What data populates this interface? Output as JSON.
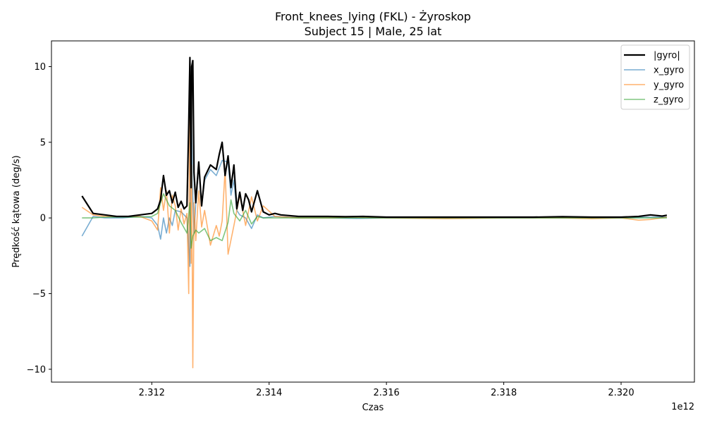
{
  "chart_data": {
    "type": "line",
    "title": "Front_knees_lying (FKL) - Żyroskop",
    "subtitle": "Subject 15 | Male, 25 lat",
    "xlabel": "Czas",
    "ylabel": "Prędkość kątowa (deg/s)",
    "x_offset_label": "1e12",
    "xlim": [
      2.31029,
      2.32125
    ],
    "ylim": [
      -10.85,
      11.7
    ],
    "x_ticks": [
      2.312,
      2.314,
      2.316,
      2.318,
      2.32
    ],
    "x_tick_labels": [
      "2.312",
      "2.314",
      "2.316",
      "2.318",
      "2.320"
    ],
    "y_ticks": [
      10,
      5,
      0,
      -5,
      -10
    ],
    "y_tick_labels": [
      "10",
      "5",
      "0",
      "−5",
      "−10"
    ],
    "grid": false,
    "legend_position": "top-right",
    "series": [
      {
        "name": "|gyro|",
        "color": "#000000",
        "x": [
          2.31081,
          2.311,
          2.3112,
          2.3114,
          2.3116,
          2.3118,
          2.312,
          2.3121,
          2.31215,
          2.3122,
          2.31225,
          2.3123,
          2.31235,
          2.3124,
          2.31245,
          2.3125,
          2.31255,
          2.3126,
          2.31263,
          2.31265,
          2.31267,
          2.31268,
          2.3127,
          2.31272,
          2.31275,
          2.3128,
          2.31285,
          2.3129,
          2.313,
          2.3131,
          2.31315,
          2.3132,
          2.31325,
          2.3133,
          2.31335,
          2.3134,
          2.31345,
          2.3135,
          2.31355,
          2.3136,
          2.31365,
          2.3137,
          2.3138,
          2.3139,
          2.314,
          2.3141,
          2.3142,
          2.3145,
          2.315,
          2.3153,
          2.3156,
          2.316,
          2.3165,
          2.317,
          2.3175,
          2.318,
          2.3185,
          2.319,
          2.3195,
          2.32,
          2.3203,
          2.3205,
          2.3207,
          2.32078
        ],
        "values": [
          1.45,
          0.3,
          0.2,
          0.1,
          0.1,
          0.2,
          0.3,
          0.6,
          1.2,
          2.8,
          1.5,
          1.8,
          1.0,
          1.7,
          0.7,
          1.1,
          0.6,
          0.8,
          6.2,
          10.6,
          2.0,
          10.0,
          10.4,
          3.0,
          1.0,
          3.7,
          0.8,
          2.7,
          3.5,
          3.2,
          4.2,
          5.0,
          2.8,
          4.1,
          2.0,
          3.5,
          0.6,
          1.7,
          0.5,
          1.6,
          1.2,
          0.4,
          1.8,
          0.4,
          0.2,
          0.3,
          0.2,
          0.1,
          0.1,
          0.08,
          0.1,
          0.05,
          0.05,
          0.05,
          0.05,
          0.05,
          0.05,
          0.08,
          0.05,
          0.05,
          0.1,
          0.2,
          0.12,
          0.18
        ]
      },
      {
        "name": "x_gyro",
        "color": "#1f77b4",
        "x": [
          2.31081,
          2.311,
          2.3112,
          2.3115,
          2.3118,
          2.312,
          2.3121,
          2.31215,
          2.3122,
          2.31225,
          2.3123,
          2.31235,
          2.3124,
          2.3125,
          2.3126,
          2.31265,
          2.31267,
          2.3127,
          2.31272,
          2.31275,
          2.3128,
          2.31285,
          2.3129,
          2.313,
          2.3131,
          2.3132,
          2.3133,
          2.31335,
          2.3134,
          2.31345,
          2.3135,
          2.3136,
          2.3137,
          2.3138,
          2.3139,
          2.3141,
          2.3145,
          2.315,
          2.3155,
          2.316,
          2.317,
          2.318,
          2.319,
          2.32,
          2.3205,
          2.32078
        ],
        "values": [
          -1.2,
          0.1,
          0.0,
          0.0,
          0.1,
          0.0,
          -0.5,
          -1.4,
          0.0,
          -1.0,
          0.0,
          -0.5,
          0.5,
          0.4,
          0.0,
          -3.2,
          8.0,
          1.5,
          -1.0,
          1.0,
          3.5,
          0.8,
          2.5,
          3.2,
          2.8,
          3.8,
          3.7,
          1.5,
          2.5,
          0.5,
          0.2,
          0.0,
          -0.7,
          0.2,
          0.0,
          0.1,
          0.0,
          0.0,
          -0.03,
          0.0,
          0.0,
          0.0,
          0.0,
          0.0,
          0.05,
          0.05
        ]
      },
      {
        "name": "y_gyro",
        "color": "#ff7f0e",
        "x": [
          2.31081,
          2.311,
          2.3112,
          2.3115,
          2.3118,
          2.312,
          2.3121,
          2.31215,
          2.3122,
          2.31225,
          2.3123,
          2.31235,
          2.3124,
          2.31245,
          2.3125,
          2.31255,
          2.3126,
          2.31263,
          2.31265,
          2.31267,
          2.31268,
          2.3127,
          2.31272,
          2.31275,
          2.3128,
          2.31285,
          2.3129,
          2.313,
          2.3131,
          2.31315,
          2.3132,
          2.31325,
          2.3133,
          2.3134,
          2.3135,
          2.3136,
          2.3137,
          2.3138,
          2.3139,
          2.3141,
          2.3145,
          2.315,
          2.3155,
          2.316,
          2.317,
          2.318,
          2.319,
          2.3195,
          2.32,
          2.3203,
          2.3205,
          2.32078
        ],
        "values": [
          0.7,
          0.2,
          0.1,
          0.1,
          0.1,
          -0.2,
          -0.8,
          2.0,
          0.5,
          1.8,
          -1.0,
          1.5,
          0.8,
          -0.8,
          0.6,
          -0.4,
          0.3,
          -5.0,
          10.0,
          -3.0,
          3.5,
          -9.9,
          1.0,
          -1.5,
          1.8,
          -0.6,
          0.5,
          -1.8,
          -0.5,
          -1.2,
          -0.2,
          3.2,
          -2.4,
          -0.5,
          1.5,
          -0.5,
          1.4,
          -0.2,
          0.8,
          0.1,
          0.0,
          0.0,
          0.05,
          0.0,
          -0.05,
          0.0,
          0.0,
          -0.05,
          0.0,
          -0.15,
          -0.1,
          0.05
        ]
      },
      {
        "name": "z_gyro",
        "color": "#2ca02c",
        "x": [
          2.31081,
          2.311,
          2.3112,
          2.3115,
          2.3118,
          2.312,
          2.3121,
          2.31215,
          2.3122,
          2.3123,
          2.3124,
          2.3125,
          2.3126,
          2.31265,
          2.31267,
          2.3127,
          2.31275,
          2.3128,
          2.3129,
          2.313,
          2.3131,
          2.3132,
          2.3133,
          2.31335,
          2.3134,
          2.3135,
          2.3136,
          2.3137,
          2.3138,
          2.3139,
          2.3141,
          2.3145,
          2.315,
          2.3155,
          2.316,
          2.317,
          2.318,
          2.319,
          2.32,
          2.3205,
          2.32078
        ],
        "values": [
          0.0,
          0.0,
          0.05,
          0.05,
          0.05,
          0.1,
          0.3,
          1.0,
          1.6,
          0.8,
          0.5,
          -0.3,
          -1.0,
          1.0,
          -2.0,
          -1.2,
          -0.8,
          -1.0,
          -0.7,
          -1.5,
          -1.3,
          -1.5,
          -0.3,
          1.2,
          0.3,
          -0.2,
          0.5,
          -0.4,
          0.1,
          0.0,
          0.0,
          0.0,
          0.0,
          0.0,
          0.0,
          0.0,
          0.0,
          0.0,
          0.0,
          0.0,
          0.0
        ]
      }
    ]
  }
}
